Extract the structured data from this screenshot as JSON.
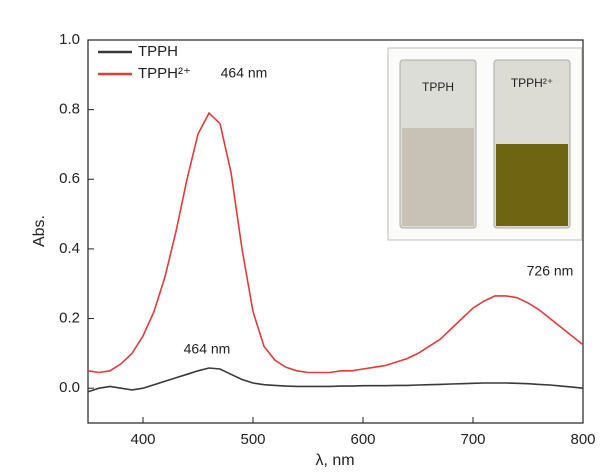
{
  "chart_data": {
    "type": "line",
    "x_label": "λ, nm",
    "y_label": "Abs.",
    "xlim": [
      350,
      800
    ],
    "ylim": [
      -0.1,
      1.0
    ],
    "xticks": [
      400,
      500,
      600,
      700,
      800
    ],
    "yticks": [
      {
        "value": 0,
        "label": "0.0"
      },
      0.2,
      0.4,
      0.6,
      0.8,
      {
        "value": 1,
        "label": "1.0"
      }
    ],
    "legend": "upper left",
    "x": [
      350,
      360,
      370,
      380,
      390,
      400,
      410,
      420,
      430,
      440,
      450,
      460,
      470,
      480,
      490,
      500,
      510,
      520,
      530,
      540,
      550,
      560,
      570,
      580,
      590,
      600,
      610,
      620,
      630,
      640,
      650,
      660,
      670,
      680,
      690,
      700,
      710,
      720,
      730,
      740,
      750,
      760,
      770,
      780,
      790,
      800
    ],
    "series": [
      {
        "name": "TPPH",
        "color": "#3a3a3a",
        "values": [
          -0.01,
          0.0,
          0.005,
          0.0,
          -0.005,
          0.0,
          0.01,
          0.02,
          0.03,
          0.04,
          0.05,
          0.058,
          0.055,
          0.04,
          0.025,
          0.015,
          0.01,
          0.008,
          0.006,
          0.005,
          0.005,
          0.005,
          0.005,
          0.006,
          0.006,
          0.007,
          0.007,
          0.007,
          0.008,
          0.008,
          0.009,
          0.01,
          0.011,
          0.012,
          0.013,
          0.014,
          0.015,
          0.015,
          0.015,
          0.014,
          0.013,
          0.011,
          0.009,
          0.006,
          0.003,
          0.0
        ]
      },
      {
        "name": "TPPH²⁺",
        "color": "#e23b3b",
        "values": [
          0.05,
          0.045,
          0.05,
          0.07,
          0.1,
          0.15,
          0.22,
          0.32,
          0.45,
          0.6,
          0.73,
          0.79,
          0.76,
          0.62,
          0.4,
          0.22,
          0.12,
          0.08,
          0.06,
          0.05,
          0.045,
          0.045,
          0.045,
          0.05,
          0.05,
          0.055,
          0.06,
          0.065,
          0.075,
          0.085,
          0.1,
          0.12,
          0.14,
          0.17,
          0.2,
          0.23,
          0.25,
          0.265,
          0.265,
          0.26,
          0.245,
          0.225,
          0.2,
          0.175,
          0.15,
          0.125
        ]
      }
    ],
    "annotations": [
      "464 nm",
      "464 nm",
      "726 nm"
    ]
  },
  "inset": {
    "labels": [
      "TPPH",
      "TPPH²⁺"
    ]
  }
}
